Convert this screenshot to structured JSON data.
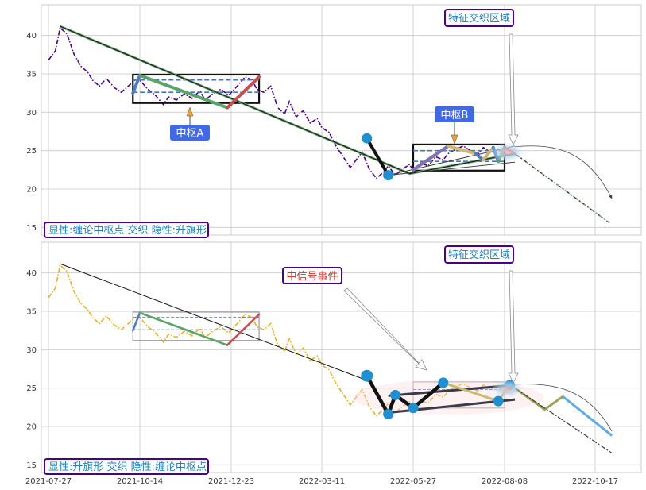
{
  "colors": {
    "panel_bg": "#ffffff",
    "grid": "#c8c8c8",
    "frame": "#cccccc",
    "price_top": "#4b0082",
    "price_bottom": "#e6b030",
    "trend": "#000000",
    "seg_blue": "#4f7bc4",
    "seg_green": "#5aa469",
    "seg_red": "#c44e52",
    "seg_tan": "#ccb974",
    "seg_purple": "#8172b2",
    "zhongshu_dash": "#4472c4",
    "label_border": "#4b0082",
    "label_text": "#1f7fb8",
    "bubble_fill": "#4169e1",
    "signal_text": "#c0392b",
    "dot": "#1f8fd0"
  },
  "chart_data": [
    {
      "type": "line",
      "panel": "top",
      "x_tick_labels": [
        "2021-07-27",
        "2021-10-14",
        "2021-12-23",
        "2022-03-11",
        "2022-05-27",
        "2022-08-08",
        "2022-10-17"
      ],
      "y_ticks": [
        15,
        20,
        25,
        30,
        35,
        40
      ],
      "ylim": [
        14,
        44
      ],
      "grid": true,
      "series": [
        {
          "role": "price",
          "style": "dash-dot",
          "x": [
            "2021-07-27",
            "2021-08-02",
            "2021-08-06",
            "2021-08-12",
            "2021-08-18",
            "2021-08-24",
            "2021-08-30",
            "2021-09-03",
            "2021-09-09",
            "2021-09-15",
            "2021-09-22",
            "2021-09-28",
            "2021-10-04",
            "2021-10-10",
            "2021-10-14",
            "2021-10-20",
            "2021-10-26",
            "2021-11-01",
            "2021-11-05",
            "2021-11-11",
            "2021-11-17",
            "2021-11-23",
            "2021-11-29",
            "2021-12-03",
            "2021-12-09",
            "2021-12-15",
            "2021-12-21",
            "2021-12-27",
            "2022-01-04",
            "2022-01-10",
            "2022-01-14",
            "2022-01-20",
            "2022-01-26",
            "2022-02-01",
            "2022-02-07",
            "2022-02-11",
            "2022-02-17",
            "2022-02-23",
            "2022-03-01",
            "2022-03-07",
            "2022-03-11",
            "2022-03-17",
            "2022-03-23",
            "2022-03-29",
            "2022-04-04",
            "2022-04-08",
            "2022-04-14",
            "2022-04-20",
            "2022-04-26",
            "2022-05-02",
            "2022-05-06",
            "2022-05-12",
            "2022-05-18",
            "2022-05-24",
            "2022-05-27",
            "2022-06-02",
            "2022-06-08",
            "2022-06-14",
            "2022-06-20",
            "2022-06-24",
            "2022-06-30",
            "2022-07-06",
            "2022-07-12",
            "2022-07-18",
            "2022-07-22",
            "2022-07-28",
            "2022-08-03",
            "2022-08-08",
            "2022-08-12",
            "2022-08-16"
          ],
          "values": [
            36.8,
            38.0,
            41.0,
            40.2,
            37.6,
            36.0,
            35.2,
            34.2,
            33.4,
            34.4,
            33.2,
            32.6,
            33.4,
            34.2,
            34.2,
            33.0,
            32.2,
            31.0,
            32.0,
            31.6,
            32.4,
            31.8,
            32.8,
            31.6,
            32.4,
            33.0,
            32.2,
            33.2,
            34.6,
            34.2,
            33.0,
            32.6,
            33.4,
            30.6,
            29.8,
            31.4,
            29.4,
            30.2,
            28.6,
            29.2,
            28.0,
            27.4,
            25.6,
            24.2,
            22.8,
            23.6,
            24.8,
            22.6,
            21.4,
            22.2,
            23.0,
            21.8,
            22.6,
            23.2,
            22.4,
            23.4,
            23.0,
            24.2,
            23.8,
            24.6,
            25.2,
            25.6,
            25.0,
            24.6,
            25.4,
            24.8,
            25.2,
            24.6,
            24.4,
            24.8
          ]
        },
        {
          "role": "trend",
          "x": [
            "2021-08-06",
            "2022-05-24",
            "2022-08-16",
            "2022-09-01",
            "2022-10-28"
          ],
          "values": [
            41.2,
            22.0,
            24.6,
            23.0,
            15.6
          ]
        },
        {
          "role": "zhongshu-strokes",
          "x": [
            "2021-10-08",
            "2021-10-14",
            "2021-12-20",
            "2022-01-16",
            "2022-05-27",
            "2022-06-24",
            "2022-07-16",
            "2022-07-22",
            "2022-07-30",
            "2022-08-03",
            "2022-08-08",
            "2022-08-16"
          ],
          "values": [
            32.5,
            34.8,
            30.6,
            34.6,
            22.5,
            25.6,
            24.6,
            23.8,
            25.4,
            23.6,
            25.4,
            24.6
          ]
        },
        {
          "role": "pivot-points",
          "x": [
            "2022-04-18",
            "2022-05-06"
          ],
          "values": [
            26.6,
            21.8
          ]
        },
        {
          "role": "projection",
          "x": [
            "2022-08-16",
            "2022-10-28"
          ],
          "values": [
            24.6,
            15.6
          ]
        }
      ],
      "annotations": [
        "中枢A",
        "中枢B",
        "特征交织区域"
      ],
      "legend_box": "显性:缠论中枢点 交织 隐性:升旗形"
    },
    {
      "type": "line",
      "panel": "bottom",
      "x_tick_labels": [
        "2021-07-27",
        "2021-10-14",
        "2021-12-23",
        "2022-03-11",
        "2022-05-27",
        "2022-08-08",
        "2022-10-17"
      ],
      "y_ticks": [
        15,
        20,
        25,
        30,
        35,
        40
      ],
      "ylim": [
        14,
        44
      ],
      "grid": true,
      "series": [
        {
          "role": "price",
          "style": "dash-dot",
          "x": [
            "2021-07-27",
            "2021-08-02",
            "2021-08-06",
            "2021-08-12",
            "2021-08-18",
            "2021-08-24",
            "2021-08-30",
            "2021-09-03",
            "2021-09-09",
            "2021-09-15",
            "2021-09-22",
            "2021-09-28",
            "2021-10-04",
            "2021-10-10",
            "2021-10-14",
            "2021-10-20",
            "2021-10-26",
            "2021-11-01",
            "2021-11-05",
            "2021-11-11",
            "2021-11-17",
            "2021-11-23",
            "2021-11-29",
            "2021-12-03",
            "2021-12-09",
            "2021-12-15",
            "2021-12-21",
            "2021-12-27",
            "2022-01-04",
            "2022-01-10",
            "2022-01-14",
            "2022-01-20",
            "2022-01-26",
            "2022-02-01",
            "2022-02-07",
            "2022-02-11",
            "2022-02-17",
            "2022-02-23",
            "2022-03-01",
            "2022-03-07",
            "2022-03-11",
            "2022-03-17",
            "2022-03-23",
            "2022-03-29",
            "2022-04-04",
            "2022-04-08",
            "2022-04-14",
            "2022-04-20",
            "2022-04-26",
            "2022-05-02",
            "2022-05-06",
            "2022-05-12",
            "2022-05-18",
            "2022-05-24",
            "2022-05-27",
            "2022-06-02",
            "2022-06-08",
            "2022-06-14",
            "2022-06-20",
            "2022-06-24",
            "2022-06-30",
            "2022-07-06",
            "2022-07-12",
            "2022-07-18",
            "2022-07-22",
            "2022-07-28",
            "2022-08-03",
            "2022-08-08",
            "2022-08-12",
            "2022-08-16"
          ],
          "values": [
            36.8,
            38.0,
            41.0,
            40.2,
            37.6,
            36.0,
            35.2,
            34.2,
            33.4,
            34.4,
            33.2,
            32.6,
            33.4,
            34.2,
            34.2,
            33.0,
            32.2,
            31.0,
            32.0,
            31.6,
            32.4,
            31.8,
            32.8,
            31.6,
            32.4,
            33.0,
            32.2,
            33.2,
            34.6,
            34.2,
            33.0,
            32.6,
            33.4,
            30.6,
            29.8,
            31.4,
            29.4,
            30.2,
            28.6,
            29.2,
            28.0,
            27.4,
            25.6,
            24.2,
            22.8,
            23.6,
            24.8,
            22.6,
            21.4,
            22.2,
            23.0,
            21.8,
            22.6,
            23.2,
            22.4,
            23.4,
            23.0,
            24.2,
            23.8,
            24.6,
            25.2,
            25.6,
            25.0,
            24.6,
            25.4,
            24.8,
            25.2,
            24.6,
            24.4,
            24.8
          ]
        },
        {
          "role": "trend",
          "x": [
            "2021-08-06",
            "2022-04-18"
          ],
          "values": [
            41.2,
            26.0
          ]
        },
        {
          "role": "zhongshu-strokes",
          "x": [
            "2021-10-08",
            "2021-10-14",
            "2021-12-20",
            "2022-01-16"
          ],
          "values": [
            32.5,
            34.8,
            30.6,
            34.6
          ]
        },
        {
          "role": "flag-pole-points",
          "x": [
            "2022-04-18",
            "2022-05-06",
            "2022-05-12",
            "2022-05-27",
            "2022-06-20",
            "2022-08-03",
            "2022-08-12"
          ],
          "values": [
            26.6,
            21.6,
            24.1,
            22.4,
            25.7,
            23.3,
            25.4
          ]
        },
        {
          "role": "projection",
          "x": [
            "2022-08-16",
            "2022-09-08",
            "2022-09-22",
            "2022-10-30"
          ],
          "values": [
            25.0,
            22.2,
            23.9,
            18.8
          ]
        }
      ],
      "annotations": [
        "中信号事件",
        "特征交织区域"
      ],
      "legend_box": "显性:升旗形 交织 隐性:缠论中枢点"
    }
  ]
}
